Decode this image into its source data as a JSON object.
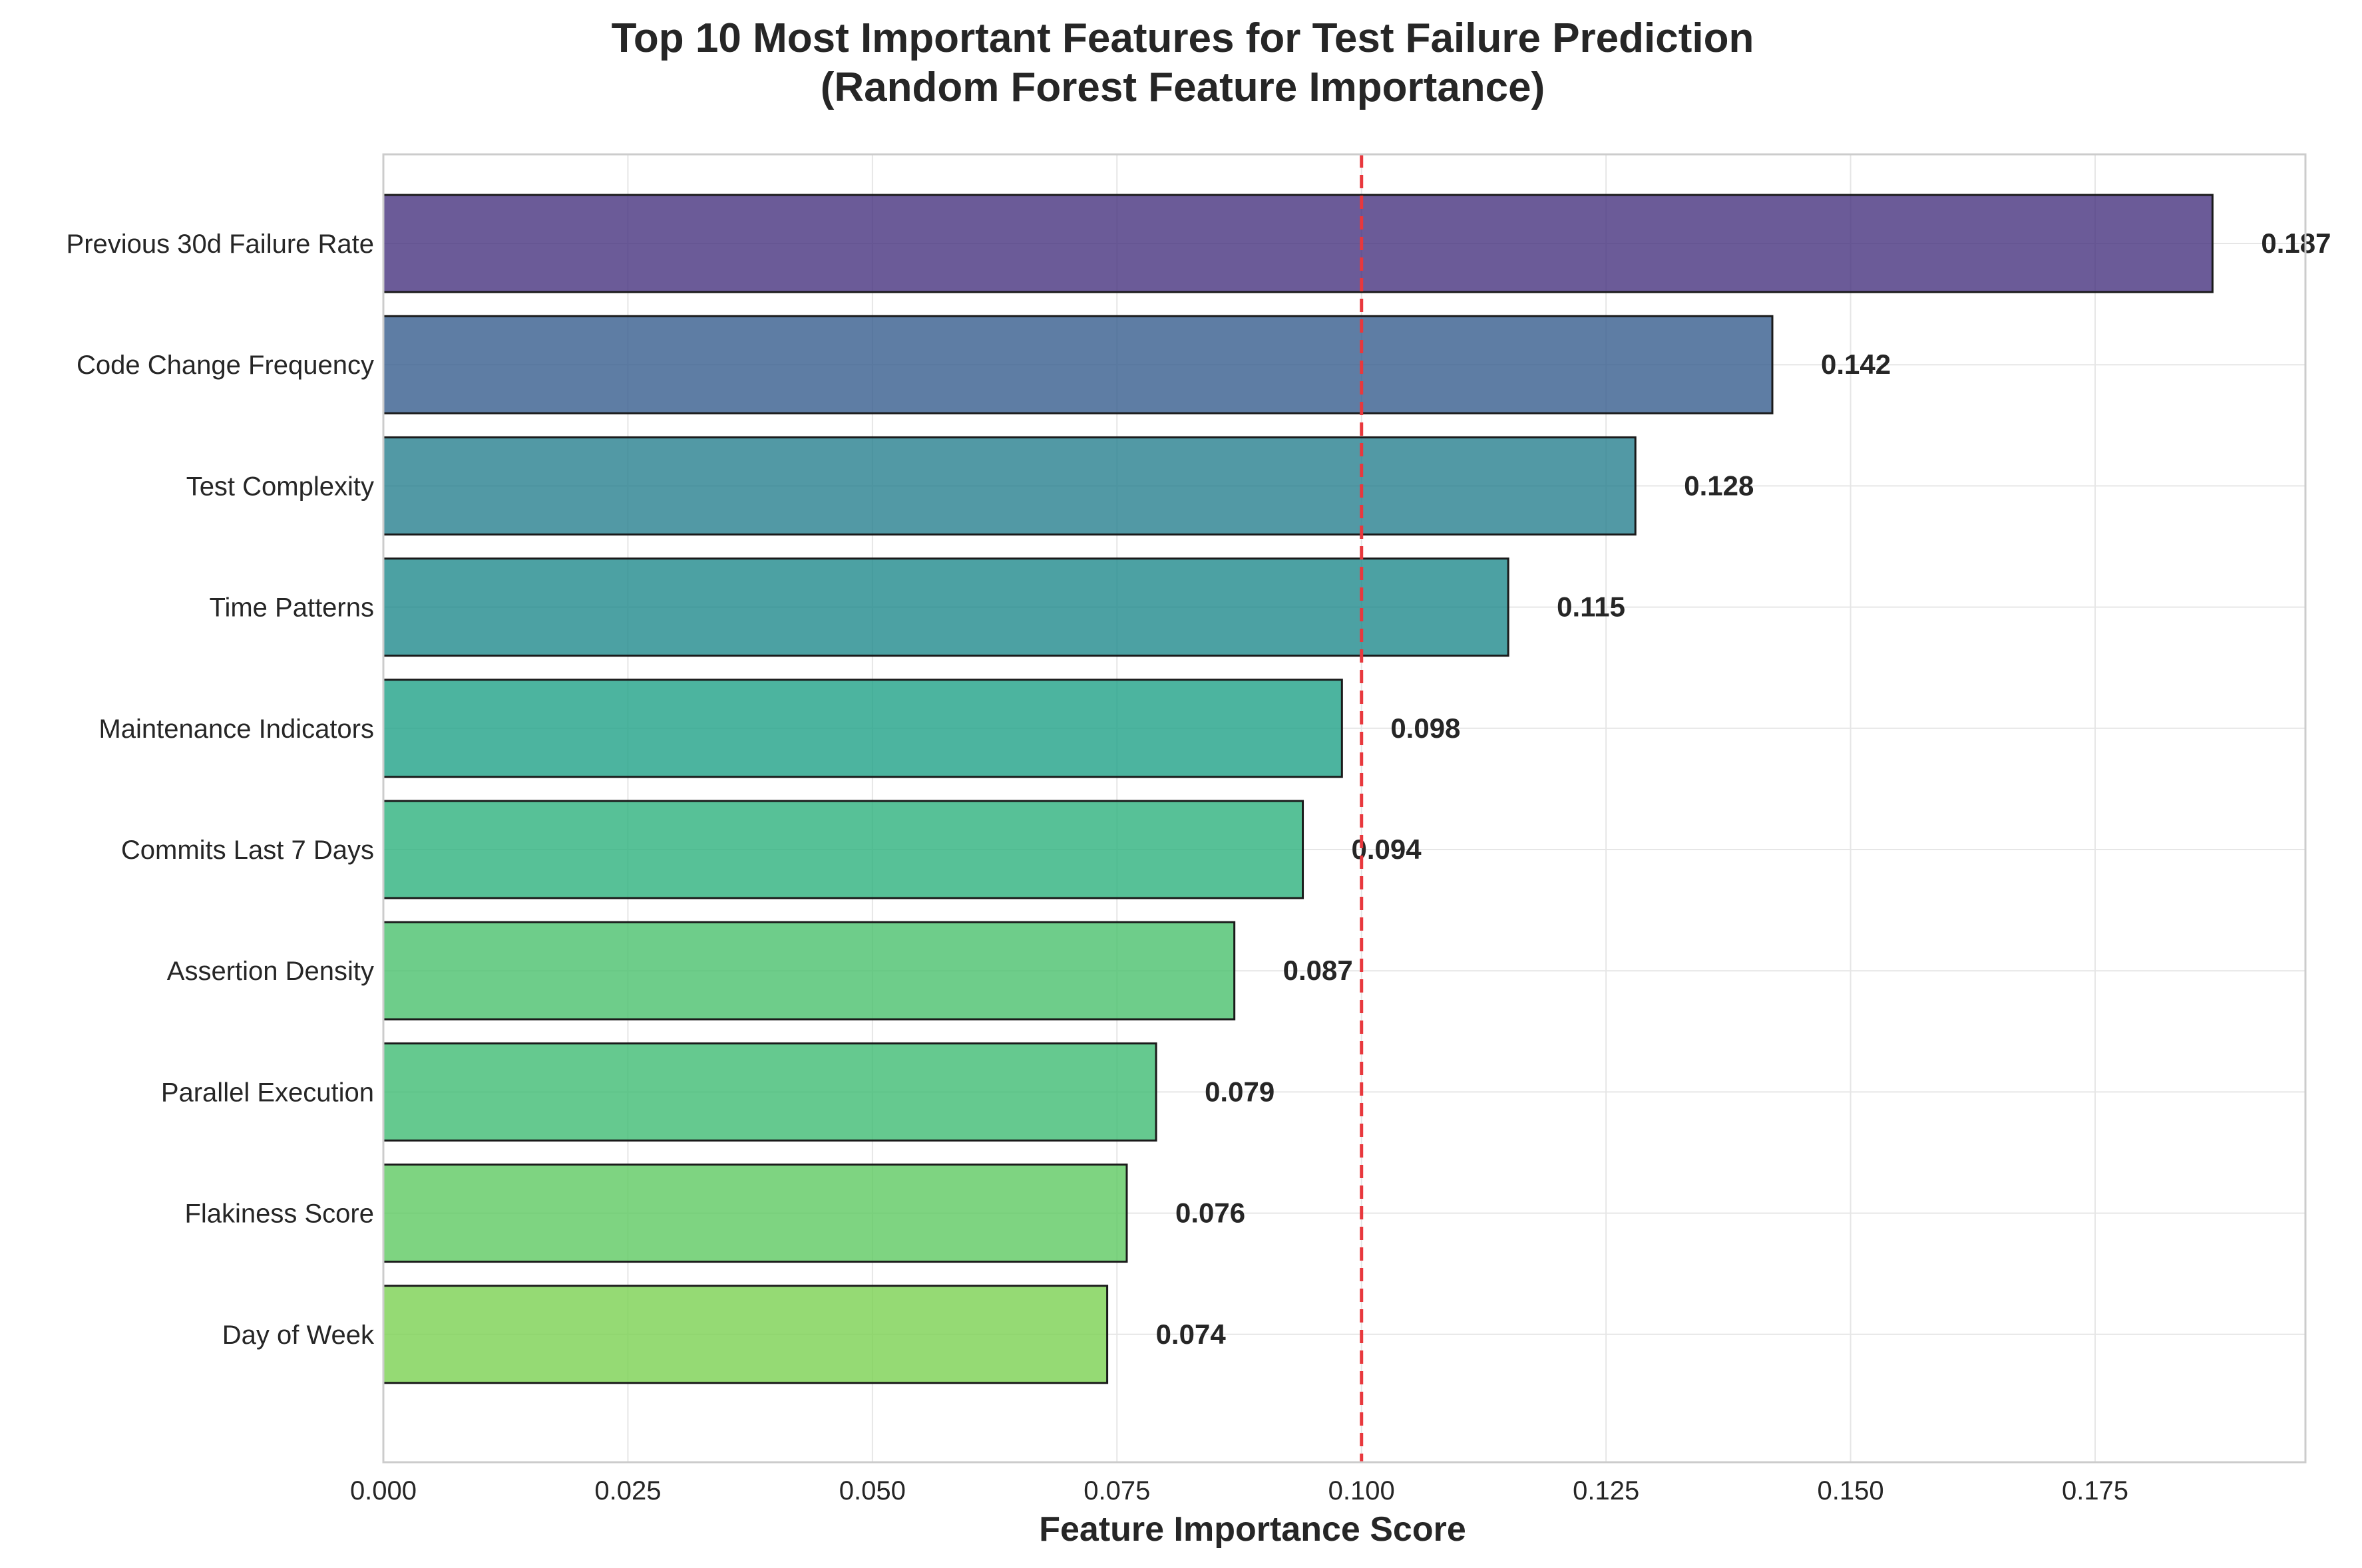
{
  "chart_data": {
    "type": "bar",
    "orientation": "horizontal",
    "title": "Top 10 Most Important Features for Test Failure Prediction",
    "subtitle": "(Random Forest Feature Importance)",
    "xlabel": "Feature Importance Score",
    "ylabel": "",
    "xlim": [
      0,
      0.1965
    ],
    "xticks": [
      "0.000",
      "0.025",
      "0.050",
      "0.075",
      "0.100",
      "0.125",
      "0.150",
      "0.175"
    ],
    "grid": true,
    "categories": [
      "Previous 30d Failure Rate",
      "Code Change Frequency",
      "Test Complexity",
      "Time Patterns",
      "Maintenance Indicators",
      "Commits Last 7 Days",
      "Assertion Density",
      "Parallel Execution",
      "Flakiness Score",
      "Day of Week"
    ],
    "values": [
      0.187,
      0.142,
      0.128,
      0.115,
      0.098,
      0.094,
      0.087,
      0.079,
      0.076,
      0.074
    ],
    "value_labels": [
      "0.187",
      "0.142",
      "0.128",
      "0.115",
      "0.098",
      "0.094",
      "0.087",
      "0.079",
      "0.076",
      "0.074"
    ],
    "colors": [
      "#46327e",
      "#365c8d",
      "#277f8e",
      "#1f8a8c",
      "#1fa187",
      "#2db27d",
      "#4ac16d",
      "#3fbc73",
      "#5ec962",
      "#7ad151"
    ],
    "reference_line": {
      "x": 0.1,
      "color": "#e8383d",
      "style": "dashed"
    }
  }
}
